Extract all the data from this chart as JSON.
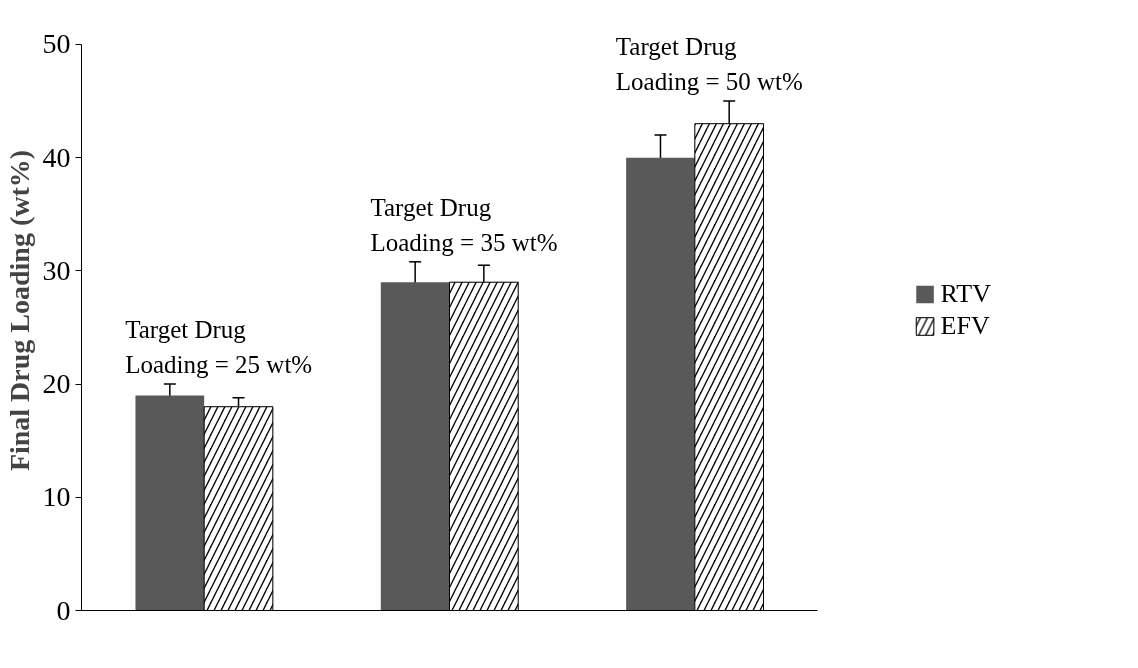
{
  "chart_data": {
    "type": "bar",
    "ylabel": "Final Drug Loading (wt%)",
    "categories": [
      null,
      null,
      null
    ],
    "series": [
      {
        "name": "RTV",
        "color": "#595959",
        "values": [
          19,
          29,
          40
        ],
        "errors": [
          1,
          1.8,
          2
        ]
      },
      {
        "name": "EFV",
        "color": "#000000",
        "values": [
          18,
          29,
          43
        ],
        "errors": [
          0.8,
          1.5,
          2
        ]
      }
    ],
    "annotations": [
      "Target Drug\nLoading = 25 wt%",
      "Target Drug\nLoading = 35 wt%",
      "Target Drug\nLoading = 50 wt%"
    ],
    "ylim": [
      0,
      50
    ],
    "yticks": [
      0,
      10,
      20,
      30,
      40,
      50
    ],
    "grid": false,
    "legend": "right",
    "tick_labels": "y"
  }
}
